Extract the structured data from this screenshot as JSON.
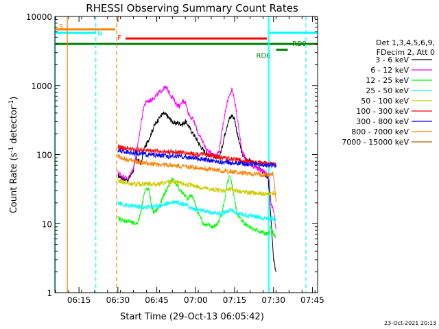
{
  "chart_data": {
    "type": "line",
    "title": "RHESSI Observing Summary Count Rates",
    "xlabel": "Start Time (29-Oct-13 06:05:42)",
    "ylabel_main": "Count Rate (s",
    "ylabel_sup1": "-1",
    "ylabel_mid": " detector",
    "ylabel_sup2": "-1",
    "ylabel_end": ")",
    "yscale": "log",
    "xlim": [
      365.7,
      467
    ],
    "ylim": [
      1,
      10000
    ],
    "x_ticks": [
      {
        "value": 375,
        "label": "06:15"
      },
      {
        "value": 390,
        "label": "06:30"
      },
      {
        "value": 405,
        "label": "06:45"
      },
      {
        "value": 420,
        "label": "07:00"
      },
      {
        "value": 435,
        "label": "07:15"
      },
      {
        "value": 450,
        "label": "07:30"
      },
      {
        "value": 465,
        "label": "07:45"
      }
    ],
    "y_ticks": [
      {
        "value": 1,
        "label": "1"
      },
      {
        "value": 10,
        "label": "10"
      },
      {
        "value": 100,
        "label": "100"
      },
      {
        "value": 1000,
        "label": "1000"
      },
      {
        "value": 10000,
        "label": "10000"
      }
    ],
    "legend": {
      "placement": "right",
      "header": [
        "Det 1,3,4,5,6,9,",
        "FDecim 2, Att 0"
      ],
      "entries": [
        {
          "label": "3 - 6 keV",
          "color": "#000000"
        },
        {
          "label": "6 - 12 keV",
          "color": "#ff00ff"
        },
        {
          "label": "12 - 25 keV",
          "color": "#00ff00"
        },
        {
          "label": "25 - 50 keV",
          "color": "#00ffff"
        },
        {
          "label": "50 - 100 keV",
          "color": "#cccc00"
        },
        {
          "label": "100 - 300 keV",
          "color": "#ff0000"
        },
        {
          "label": "300 - 800 keV",
          "color": "#0000ff"
        },
        {
          "label": "800 - 7000 keV",
          "color": "#ff8000"
        },
        {
          "label": "7000 - 15000 keV",
          "color": "#996600"
        }
      ]
    },
    "flag_bars": [
      {
        "label": "S",
        "color": "#ff8000",
        "x0": 365.7,
        "x1": 389,
        "y": 6500
      },
      {
        "label": "N",
        "color": "#00ffff",
        "x0": 365.7,
        "x1": 381.5,
        "y": 5800
      },
      {
        "label": "F",
        "color": "#ff0000",
        "x0": 393,
        "x1": 447.5,
        "y": 4800
      },
      {
        "label": "",
        "color": "#00ffff",
        "x0": 448.5,
        "x1": 467,
        "y": 5800
      },
      {
        "label": "RD9",
        "color": "#008000",
        "x0": 365.7,
        "x1": 467,
        "y": 4000
      },
      {
        "label": "RD6",
        "color": "#008000",
        "x0": 451,
        "x1": 455.5,
        "y": 3300
      }
    ],
    "vertical_lines": [
      {
        "x": 365.9,
        "color": "#00ffff",
        "style": "solid"
      },
      {
        "x": 370.5,
        "color": "#ff8000",
        "style": "solid"
      },
      {
        "x": 381.5,
        "color": "#00ffff",
        "style": "dashed"
      },
      {
        "x": 389.5,
        "color": "#ff8000",
        "style": "dashed"
      },
      {
        "x": 448,
        "color": "#00ffff",
        "style": "solid"
      },
      {
        "x": 448.6,
        "color": "#00ffff",
        "style": "solid"
      },
      {
        "x": 462.5,
        "color": "#00ffff",
        "style": "dashed"
      }
    ],
    "series": [
      {
        "name": "3 - 6 keV",
        "color": "#000000",
        "x": [
          390,
          392,
          394,
          396,
          397,
          398,
          399,
          400,
          401,
          402,
          403,
          404,
          405,
          406,
          407,
          408,
          409,
          410,
          411,
          412,
          413,
          414,
          415,
          416,
          417,
          418,
          419,
          420,
          421,
          422,
          423,
          424,
          425,
          426,
          427,
          428,
          429,
          430,
          431,
          432,
          433,
          434,
          435,
          436,
          437,
          438,
          439,
          440,
          441,
          442,
          443,
          444,
          445,
          446,
          447,
          448,
          449,
          450,
          451
        ],
        "y": [
          50,
          45,
          43,
          60,
          90,
          80,
          75,
          120,
          140,
          170,
          210,
          260,
          300,
          340,
          380,
          390,
          360,
          330,
          300,
          280,
          290,
          280,
          275,
          300,
          270,
          230,
          200,
          175,
          150,
          130,
          115,
          105,
          100,
          100,
          95,
          90,
          92,
          120,
          180,
          260,
          330,
          370,
          330,
          200,
          140,
          100,
          90,
          85,
          80,
          78,
          70,
          65,
          60,
          55,
          50,
          45,
          12,
          3,
          2
        ]
      },
      {
        "name": "6 - 12 keV",
        "color": "#ff00ff",
        "x": [
          390,
          392,
          394,
          396,
          397,
          398,
          399,
          400,
          401,
          402,
          403,
          404,
          405,
          406,
          407,
          408,
          409,
          410,
          411,
          412,
          413,
          414,
          415,
          416,
          417,
          418,
          419,
          420,
          421,
          422,
          423,
          424,
          425,
          426,
          427,
          428,
          429,
          430,
          431,
          432,
          433,
          434,
          435,
          436,
          437,
          438,
          439,
          440,
          441,
          442,
          443,
          444,
          445,
          446,
          447,
          448,
          449,
          450,
          451
        ],
        "y": [
          55,
          48,
          45,
          65,
          100,
          160,
          300,
          500,
          580,
          600,
          620,
          680,
          720,
          800,
          850,
          940,
          900,
          760,
          680,
          580,
          520,
          500,
          600,
          580,
          420,
          350,
          320,
          260,
          200,
          170,
          150,
          120,
          110,
          105,
          100,
          100,
          110,
          200,
          350,
          550,
          700,
          880,
          620,
          350,
          180,
          110,
          90,
          80,
          75,
          70,
          65,
          62,
          60,
          58,
          55,
          50,
          20,
          15,
          8
        ]
      },
      {
        "name": "12 - 25 keV",
        "color": "#00ff00",
        "x": [
          390,
          392,
          394,
          396,
          397,
          398,
          399,
          400,
          401,
          402,
          403,
          404,
          405,
          406,
          407,
          408,
          409,
          410,
          411,
          412,
          413,
          414,
          415,
          416,
          417,
          418,
          419,
          420,
          421,
          422,
          423,
          424,
          425,
          426,
          427,
          428,
          429,
          430,
          431,
          432,
          433,
          434,
          435,
          436,
          437,
          438,
          439,
          440,
          441,
          442,
          443,
          444,
          445,
          446,
          447,
          448,
          449,
          450,
          451
        ],
        "y": [
          12,
          11,
          11,
          10,
          10,
          11,
          16,
          26,
          32,
          30,
          18,
          14,
          16,
          18,
          22,
          27,
          32,
          38,
          45,
          40,
          35,
          30,
          28,
          25,
          22,
          26,
          24,
          18,
          14,
          12,
          10,
          9.5,
          9.5,
          9,
          9,
          9.5,
          11,
          14,
          20,
          35,
          48,
          38,
          22,
          14,
          12,
          11,
          10,
          9.5,
          9,
          8.5,
          8,
          8,
          7.5,
          7.5,
          7,
          7,
          9,
          7,
          6
        ]
      },
      {
        "name": "25 - 50 keV",
        "color": "#00ffff",
        "x": [
          390,
          392,
          394,
          396,
          398,
          400,
          402,
          404,
          406,
          408,
          410,
          412,
          414,
          416,
          418,
          420,
          422,
          424,
          426,
          428,
          430,
          432,
          434,
          436,
          438,
          440,
          442,
          444,
          446,
          448,
          450,
          451
        ],
        "y": [
          20,
          19,
          18,
          18,
          17.5,
          17,
          17.5,
          18,
          18,
          19,
          20,
          21,
          20,
          19,
          17,
          16,
          15.5,
          15,
          14.5,
          14,
          14,
          15,
          15.5,
          14,
          13.5,
          13,
          13,
          12.5,
          12,
          12,
          12,
          11
        ]
      },
      {
        "name": "50 - 100 keV",
        "color": "#cccc00",
        "x": [
          390,
          392,
          394,
          396,
          398,
          400,
          402,
          404,
          406,
          408,
          410,
          412,
          414,
          416,
          418,
          420,
          422,
          424,
          426,
          428,
          430,
          432,
          434,
          436,
          438,
          440,
          442,
          444,
          446,
          448,
          450,
          451
        ],
        "y": [
          42,
          40,
          38,
          37,
          37,
          38,
          38,
          37,
          38,
          39,
          40,
          40,
          38,
          37,
          36,
          35,
          33,
          32,
          31,
          31,
          30,
          31,
          31,
          30,
          29,
          28,
          28,
          27,
          27,
          27,
          28,
          25
        ]
      },
      {
        "name": "100 - 300 keV",
        "color": "#ff0000",
        "x": [
          390,
          392,
          394,
          396,
          398,
          400,
          402,
          404,
          406,
          408,
          410,
          412,
          414,
          416,
          418,
          420,
          422,
          424,
          426,
          428,
          430,
          432,
          434,
          436,
          438,
          440,
          442,
          444,
          446,
          448,
          450,
          451
        ],
        "y": [
          130,
          125,
          122,
          120,
          118,
          116,
          115,
          114,
          112,
          110,
          110,
          110,
          108,
          106,
          104,
          102,
          100,
          98,
          96,
          93,
          90,
          88,
          86,
          84,
          82,
          80,
          78,
          76,
          75,
          74,
          75,
          72
        ]
      },
      {
        "name": "300 - 800 keV",
        "color": "#0000ff",
        "x": [
          390,
          392,
          394,
          396,
          398,
          400,
          402,
          404,
          406,
          408,
          410,
          412,
          414,
          416,
          418,
          420,
          422,
          424,
          426,
          428,
          430,
          432,
          434,
          436,
          438,
          440,
          442,
          444,
          446,
          448,
          450,
          451
        ],
        "y": [
          115,
          110,
          108,
          105,
          104,
          102,
          100,
          98,
          97,
          96,
          95,
          95,
          94,
          92,
          90,
          88,
          86,
          84,
          82,
          80,
          78,
          77,
          76,
          75,
          74,
          73,
          72,
          71,
          70,
          70,
          71,
          69
        ]
      },
      {
        "name": "800 - 7000 keV",
        "color": "#ff8000",
        "x": [
          390,
          392,
          394,
          396,
          398,
          400,
          402,
          404,
          406,
          408,
          410,
          412,
          414,
          416,
          418,
          420,
          422,
          424,
          426,
          428,
          430,
          432,
          434,
          436,
          438,
          440,
          442,
          444,
          446,
          448,
          450,
          451
        ],
        "y": [
          95,
          88,
          84,
          80,
          77,
          75,
          74,
          73,
          72,
          71,
          70,
          69,
          68,
          67,
          66,
          65,
          64,
          62,
          61,
          60,
          58,
          57,
          56,
          55,
          54,
          53,
          52,
          52,
          51,
          51,
          52,
          20
        ]
      },
      {
        "name": "7000 - 15000 keV",
        "color": "#996600",
        "x": [
          451
        ],
        "y": [
          14
        ]
      }
    ]
  },
  "footer": {
    "timestamp": "23-Oct-2021 20:13"
  }
}
